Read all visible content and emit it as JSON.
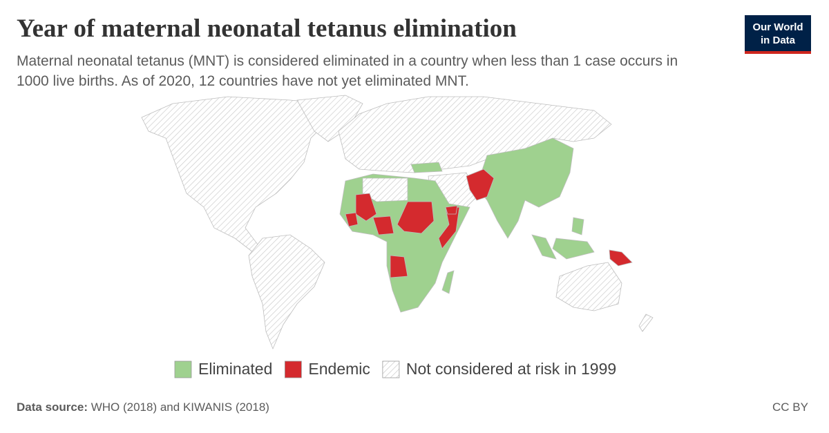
{
  "header": {
    "title": "Year of maternal neonatal tetanus elimination",
    "subtitle": "Maternal neonatal tetanus (MNT) is considered eliminated in a country when less than 1 case occurs in 1000 live births. As of 2020, 12 countries have not yet eliminated MNT."
  },
  "logo": {
    "line1": "Our World",
    "line2": "in Data"
  },
  "legend": [
    {
      "label": "Eliminated",
      "color": "#9fd18f"
    },
    {
      "label": "Endemic",
      "color": "#d42a2e"
    },
    {
      "label": "Not considered at risk in 1999"
    }
  ],
  "footer": {
    "source_label": "Data source:",
    "source": "WHO (2018) and KIWANIS (2018)",
    "license": "CC BY"
  }
}
